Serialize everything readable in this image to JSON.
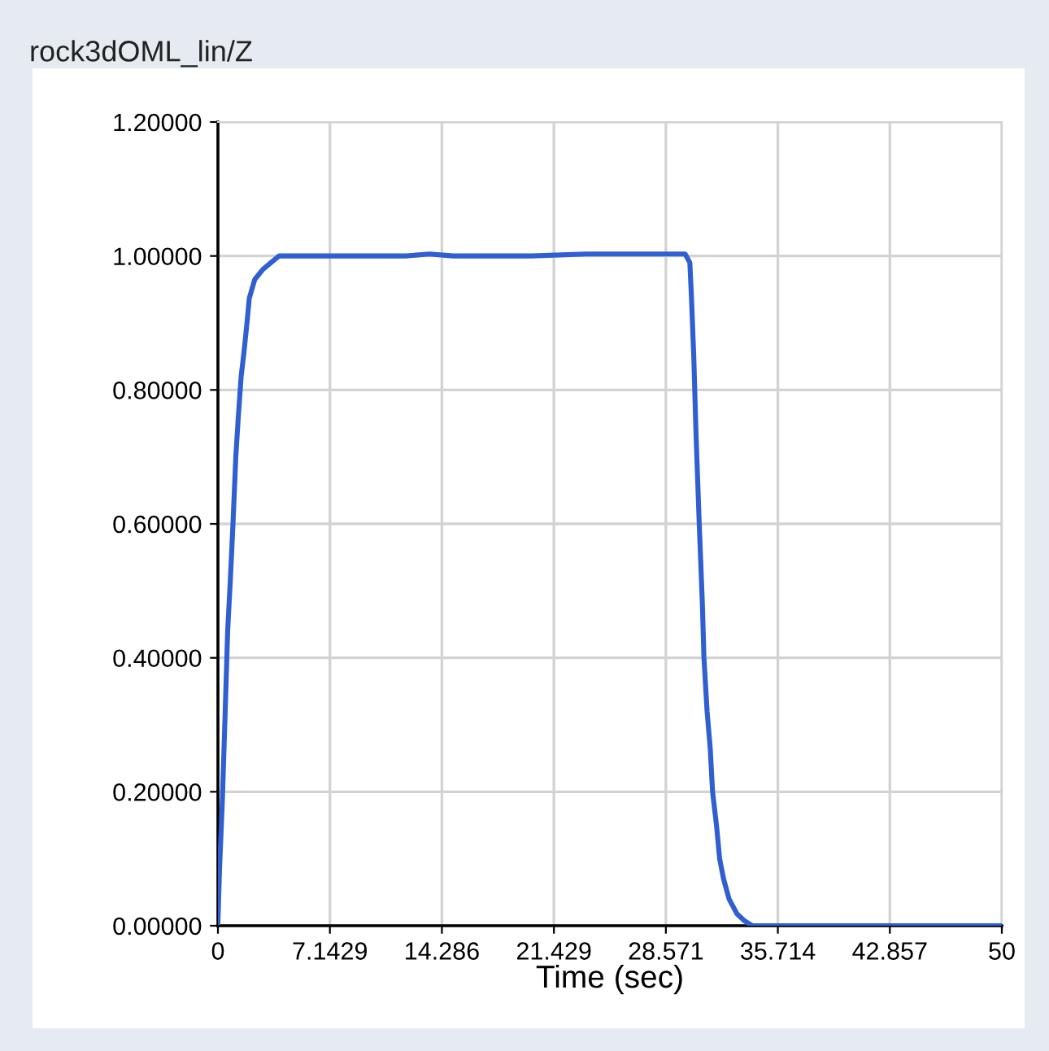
{
  "chart_data": {
    "type": "line",
    "title": "rock3dOML_lin/Z",
    "xlabel": "Time (sec)",
    "series": [
      {
        "color": "#2f5fd0",
        "x": [
          0,
          0.1,
          0.28,
          0.45,
          0.62,
          0.8,
          0.96,
          1.14,
          1.3,
          1.48,
          1.66,
          1.84,
          2.0,
          2.35,
          2.87,
          3.38,
          3.9,
          8,
          12,
          13.5,
          15,
          20,
          23.5,
          26,
          28,
          29.8,
          30.1,
          30.2,
          30.35,
          30.5,
          30.7,
          30.9,
          31.0,
          31.2,
          31.4,
          31.55,
          31.8,
          32.0,
          32.25,
          32.6,
          33.1,
          33.6,
          34.1,
          40,
          50
        ],
        "values": [
          0.005,
          0.083,
          0.185,
          0.31,
          0.44,
          0.52,
          0.6,
          0.7,
          0.76,
          0.82,
          0.856,
          0.897,
          0.937,
          0.965,
          0.98,
          0.99,
          1.0,
          1.0,
          1.0,
          1.003,
          1.0,
          1.0,
          1.003,
          1.003,
          1.003,
          1.003,
          0.99,
          0.94,
          0.85,
          0.73,
          0.6,
          0.48,
          0.4,
          0.32,
          0.265,
          0.2,
          0.15,
          0.1,
          0.07,
          0.04,
          0.018,
          0.007,
          0.0,
          0.0,
          0.0
        ]
      }
    ],
    "xlim": [
      0,
      50
    ],
    "xticks": [
      0,
      {
        "value": 7.1429,
        "label": "7.1429"
      },
      {
        "value": 14.286,
        "label": "14.286"
      },
      {
        "value": 21.429,
        "label": "21.429"
      },
      {
        "value": 28.571,
        "label": "28.571"
      },
      {
        "value": 35.714,
        "label": "35.714"
      },
      {
        "value": 42.857,
        "label": "42.857"
      },
      50
    ],
    "ylim": [
      0,
      1.2
    ],
    "yticks": [
      {
        "value": 0,
        "label": "0.00000"
      },
      {
        "value": 0.2,
        "label": "0.20000"
      },
      {
        "value": 0.4,
        "label": "0.40000"
      },
      {
        "value": 0.6,
        "label": "0.60000"
      },
      {
        "value": 0.8,
        "label": "0.80000"
      },
      {
        "value": 1.0,
        "label": "1.00000"
      },
      {
        "value": 1.2,
        "label": "1.20000"
      }
    ],
    "grid": true,
    "marker": "none",
    "line_style": "solid",
    "legend": false
  }
}
